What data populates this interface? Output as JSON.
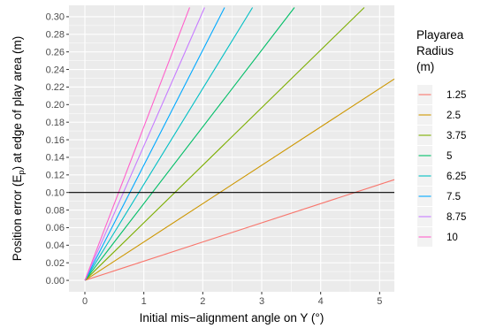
{
  "chart_data": {
    "type": "line",
    "title": "",
    "xlabel": "Initial mis−alignment angle on Y (°)",
    "ylabel_main": "Position error (E",
    "ylabel_sub": "p",
    "ylabel_rest": ") at edge of play area (m)",
    "xlim": [
      -0.27,
      5.25
    ],
    "ylim": [
      -0.013,
      0.313
    ],
    "x_ticks": [
      0,
      1,
      2,
      3,
      4,
      5
    ],
    "x_tick_labels": [
      "0",
      "1",
      "2",
      "3",
      "4",
      "5"
    ],
    "y_ticks": [
      0.0,
      0.02,
      0.04,
      0.06,
      0.08,
      0.1,
      0.12,
      0.14,
      0.16,
      0.18,
      0.2,
      0.22,
      0.24,
      0.26,
      0.28,
      0.3
    ],
    "y_tick_labels": [
      "0.00",
      "0.02",
      "0.04",
      "0.06",
      "0.08",
      "0.10",
      "0.12",
      "0.14",
      "0.16",
      "0.18",
      "0.20",
      "0.22",
      "0.24",
      "0.26",
      "0.28",
      "0.30"
    ],
    "grid": true,
    "legend_position": "right",
    "legend_title": [
      "Playarea",
      "Radius",
      "(m)"
    ],
    "series": [
      {
        "name": "1.25",
        "color": "#F8766D",
        "x": [
          0,
          5.25
        ],
        "y": [
          0,
          0.1146
        ]
      },
      {
        "name": "2.5",
        "color": "#CD9600",
        "x": [
          0,
          5.25
        ],
        "y": [
          0,
          0.2292
        ]
      },
      {
        "name": "3.75",
        "color": "#7CAE00",
        "x": [
          0,
          4.74
        ],
        "y": [
          0,
          0.3105
        ]
      },
      {
        "name": "5",
        "color": "#00BE67",
        "x": [
          0,
          3.555
        ],
        "y": [
          0,
          0.3105
        ]
      },
      {
        "name": "6.25",
        "color": "#00BFC4",
        "x": [
          0,
          2.844
        ],
        "y": [
          0,
          0.3105
        ]
      },
      {
        "name": "7.5",
        "color": "#00A9FF",
        "x": [
          0,
          2.37
        ],
        "y": [
          0,
          0.3105
        ]
      },
      {
        "name": "8.75",
        "color": "#C77CFF",
        "x": [
          0,
          2.031
        ],
        "y": [
          0,
          0.3105
        ]
      },
      {
        "name": "10",
        "color": "#FF61CC",
        "x": [
          0,
          1.777
        ],
        "y": [
          0,
          0.3105
        ]
      }
    ],
    "reference_line": {
      "y": 0.1,
      "color": "#000000"
    },
    "panel_background": "#EBEBEB",
    "grid_color": "#FFFFFF"
  }
}
